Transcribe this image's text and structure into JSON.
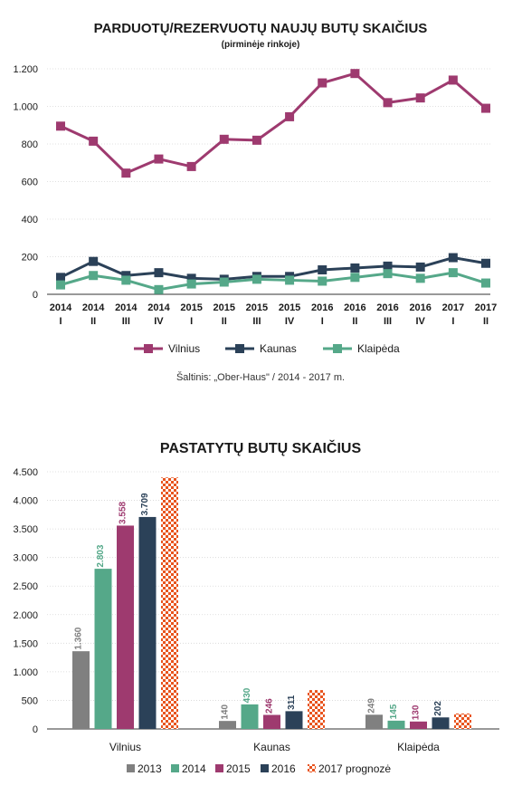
{
  "chart_data": [
    {
      "type": "line",
      "title": "PARDUOTŲ/REZERVUOTŲ NAUJŲ BUTŲ SKAIČIUS",
      "subtitle": "(pirminėje rinkoje)",
      "categories": [
        [
          "2014",
          "I"
        ],
        [
          "2014",
          "II"
        ],
        [
          "2014",
          "III"
        ],
        [
          "2014",
          "IV"
        ],
        [
          "2015",
          "I"
        ],
        [
          "2015",
          "II"
        ],
        [
          "2015",
          "III"
        ],
        [
          "2015",
          "IV"
        ],
        [
          "2016",
          "I"
        ],
        [
          "2016",
          "II"
        ],
        [
          "2016",
          "III"
        ],
        [
          "2016",
          "IV"
        ],
        [
          "2017",
          "I"
        ],
        [
          "2017",
          "II"
        ]
      ],
      "series": [
        {
          "name": "Vilnius",
          "color": "#9e3a6f",
          "values": [
            895,
            815,
            645,
            720,
            680,
            825,
            820,
            945,
            1125,
            1175,
            1020,
            1045,
            1140,
            990
          ]
        },
        {
          "name": "Kaunas",
          "color": "#2b4158",
          "values": [
            90,
            175,
            100,
            115,
            85,
            80,
            95,
            95,
            130,
            140,
            150,
            145,
            195,
            165
          ]
        },
        {
          "name": "Klaipėda",
          "color": "#55a889",
          "values": [
            50,
            100,
            75,
            25,
            55,
            65,
            80,
            75,
            70,
            90,
            110,
            85,
            115,
            60
          ]
        }
      ],
      "ylim": [
        0,
        1200
      ],
      "yticks": [
        {
          "v": 0,
          "label": "0"
        },
        {
          "v": 200,
          "label": "200"
        },
        {
          "v": 400,
          "label": "400"
        },
        {
          "v": 600,
          "label": "600"
        },
        {
          "v": 800,
          "label": "800"
        },
        {
          "v": 1000,
          "label": "1.000"
        },
        {
          "v": 1200,
          "label": "1.200"
        }
      ],
      "legend_position": "bottom",
      "source": "Šaltinis: „Ober-Haus\" / 2014 - 2017 m."
    },
    {
      "type": "bar",
      "title": "PASTATYTŲ BUTŲ SKAIČIUS",
      "categories": [
        "Vilnius",
        "Kaunas",
        "Klaipėda"
      ],
      "series": [
        {
          "name": "2013",
          "color": "#808080",
          "values": [
            1360,
            140,
            249
          ],
          "labels": [
            "1.360",
            "140",
            "249"
          ]
        },
        {
          "name": "2014",
          "color": "#55a889",
          "values": [
            2803,
            430,
            145
          ],
          "labels": [
            "2.803",
            "430",
            "145"
          ]
        },
        {
          "name": "2015",
          "color": "#9e3a6f",
          "values": [
            3558,
            246,
            130
          ],
          "labels": [
            "3.558",
            "246",
            "130"
          ]
        },
        {
          "name": "2016",
          "color": "#2b4158",
          "values": [
            3709,
            311,
            202
          ],
          "labels": [
            "3.709",
            "311",
            "202"
          ]
        },
        {
          "name": "2017 prognozė",
          "color": "#e8541e",
          "pattern": true,
          "values": [
            4400,
            680,
            270
          ]
        }
      ],
      "ylim": [
        0,
        4500
      ],
      "yticks": [
        {
          "v": 0,
          "label": "0"
        },
        {
          "v": 500,
          "label": "500"
        },
        {
          "v": 1000,
          "label": "1.000"
        },
        {
          "v": 1500,
          "label": "1.500"
        },
        {
          "v": 2000,
          "label": "2.000"
        },
        {
          "v": 2500,
          "label": "2.500"
        },
        {
          "v": 3000,
          "label": "3.000"
        },
        {
          "v": 3500,
          "label": "3.500"
        },
        {
          "v": 4000,
          "label": "4.000"
        },
        {
          "v": 4500,
          "label": "4.500"
        }
      ],
      "legend_position": "bottom"
    }
  ]
}
